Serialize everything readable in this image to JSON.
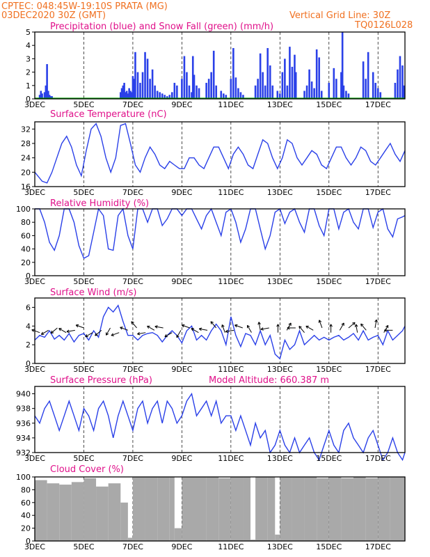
{
  "header": {
    "location": "CPTEC:  048:45W-19:10S  PRATA (MG)",
    "run": "03DEC2020 30Z (GMT)",
    "grid_note": "Vertical Grid Line: 30Z",
    "model_code": "TQ0126L028"
  },
  "chart_data": [
    {
      "type": "bar",
      "title": "Precipitation (blue) and Snow Fall (green) (mm/h)",
      "x_ticks": [
        "3DEC",
        "5DEC",
        "7DEC",
        "9DEC",
        "11DEC",
        "13DEC",
        "15DEC",
        "17DEC"
      ],
      "x_range_days": [
        3,
        18.1
      ],
      "ylim": [
        0,
        5
      ],
      "y_ticks": [
        0,
        1,
        2,
        3,
        4,
        5
      ],
      "series": [
        {
          "name": "Precipitation",
          "color": "#2a40e8",
          "x": [
            3.2,
            3.25,
            3.3,
            3.4,
            3.45,
            3.5,
            3.55,
            3.6,
            3.65,
            3.7,
            6.5,
            6.55,
            6.6,
            6.65,
            6.7,
            6.75,
            6.8,
            6.85,
            6.9,
            6.95,
            7.0,
            7.05,
            7.1,
            7.2,
            7.3,
            7.4,
            7.5,
            7.6,
            7.7,
            7.8,
            7.9,
            8.0,
            8.1,
            8.2,
            8.3,
            8.4,
            8.5,
            8.6,
            8.7,
            8.8,
            9.0,
            9.1,
            9.2,
            9.3,
            9.4,
            9.45,
            9.5,
            9.6,
            9.7,
            10.0,
            10.1,
            10.2,
            10.3,
            10.4,
            10.6,
            10.7,
            10.8,
            11.0,
            11.1,
            11.2,
            11.3,
            11.4,
            11.5,
            12.0,
            12.1,
            12.2,
            12.3,
            12.4,
            12.5,
            12.6,
            12.7,
            12.9,
            13.0,
            13.1,
            13.2,
            13.3,
            13.4,
            13.5,
            13.6,
            13.65,
            14.0,
            14.1,
            14.2,
            14.3,
            14.4,
            14.5,
            14.6,
            14.7,
            15.0,
            15.2,
            15.3,
            15.5,
            15.55,
            15.6,
            15.7,
            15.8,
            16.4,
            16.5,
            16.6,
            16.8,
            16.9,
            17.0,
            17.1,
            17.7,
            17.8,
            17.9,
            18.0,
            18.05
          ],
          "values": [
            0.3,
            0.6,
            0.4,
            0.5,
            1.0,
            2.6,
            0.6,
            0.3,
            0.2,
            0.2,
            0.5,
            0.8,
            1.0,
            1.2,
            0.5,
            0.6,
            0.4,
            0.8,
            0.6,
            0.5,
            1.7,
            1.5,
            3.5,
            2.0,
            1.2,
            2.0,
            3.5,
            3.0,
            1.5,
            2.2,
            1.0,
            0.6,
            0.5,
            0.4,
            0.3,
            0.2,
            0.3,
            0.5,
            1.2,
            1.0,
            1.5,
            3.2,
            2.0,
            1.0,
            0.5,
            3.2,
            1.8,
            1.0,
            0.8,
            1.2,
            1.5,
            2.0,
            3.6,
            1.0,
            0.6,
            0.4,
            0.3,
            1.5,
            3.8,
            1.6,
            0.8,
            0.5,
            0.3,
            1.0,
            1.5,
            3.4,
            2.0,
            1.0,
            3.8,
            2.5,
            1.0,
            0.6,
            0.4,
            2.0,
            3.0,
            1.0,
            3.9,
            2.4,
            3.3,
            2.0,
            0.6,
            1.0,
            2.2,
            1.3,
            0.8,
            3.7,
            3.1,
            0.6,
            1.2,
            2.3,
            1.5,
            2.0,
            5.0,
            1.0,
            0.6,
            0.4,
            2.8,
            1.5,
            3.5,
            2.0,
            1.2,
            0.8,
            0.5,
            1.2,
            2.2,
            3.2,
            2.5,
            1.0
          ]
        },
        {
          "name": "Snow Fall",
          "color": "#00a000",
          "values": [
            0
          ]
        }
      ]
    },
    {
      "type": "line",
      "title": "Surface Temperature (nC)",
      "x_ticks": [
        "3DEC",
        "5DEC",
        "7DEC",
        "9DEC",
        "11DEC",
        "13DEC",
        "15DEC",
        "17DEC"
      ],
      "ylim": [
        16,
        34
      ],
      "y_ticks": [
        16,
        20,
        24,
        28,
        32
      ],
      "x": [
        3.0,
        3.3,
        3.5,
        3.7,
        3.9,
        4.1,
        4.3,
        4.5,
        4.7,
        4.9,
        5.1,
        5.3,
        5.5,
        5.7,
        5.9,
        6.1,
        6.3,
        6.5,
        6.7,
        6.9,
        7.1,
        7.3,
        7.5,
        7.7,
        7.9,
        8.1,
        8.3,
        8.5,
        8.7,
        8.9,
        9.1,
        9.3,
        9.5,
        9.7,
        9.9,
        10.1,
        10.3,
        10.5,
        10.7,
        10.9,
        11.1,
        11.3,
        11.5,
        11.7,
        11.9,
        12.1,
        12.3,
        12.5,
        12.7,
        12.9,
        13.1,
        13.3,
        13.5,
        13.7,
        13.9,
        14.1,
        14.3,
        14.5,
        14.7,
        14.9,
        15.1,
        15.3,
        15.5,
        15.7,
        15.9,
        16.1,
        16.3,
        16.5,
        16.7,
        16.9,
        17.1,
        17.3,
        17.5,
        17.7,
        17.9,
        18.1
      ],
      "values": [
        20,
        17.5,
        17,
        20,
        24,
        28,
        30,
        27,
        22,
        19,
        26,
        32,
        33.5,
        30,
        24,
        20,
        24,
        33,
        33.5,
        28,
        22,
        20,
        24,
        27,
        25,
        22,
        21,
        23,
        22,
        21,
        21,
        24,
        24,
        22,
        21,
        24,
        27,
        27,
        24,
        21,
        25,
        27,
        25,
        22,
        21,
        25,
        29,
        28,
        24,
        21,
        24,
        29,
        28,
        24,
        22,
        24,
        26,
        25,
        22,
        21,
        24,
        27,
        27,
        24,
        22,
        24,
        27,
        26,
        23,
        22,
        24,
        26,
        28,
        25,
        23,
        26
      ]
    },
    {
      "type": "line",
      "title": "Relative Humidity (%)",
      "x_ticks": [
        "3DEC",
        "5DEC",
        "7DEC",
        "9DEC",
        "11DEC",
        "13DEC",
        "15DEC",
        "17DEC"
      ],
      "ylim": [
        0,
        100
      ],
      "y_ticks": [
        0,
        20,
        40,
        60,
        80,
        100
      ],
      "x": [
        3.0,
        3.2,
        3.4,
        3.6,
        3.8,
        4.0,
        4.2,
        4.4,
        4.6,
        4.8,
        5.0,
        5.2,
        5.4,
        5.6,
        5.8,
        6.0,
        6.2,
        6.4,
        6.6,
        6.8,
        7.0,
        7.2,
        7.4,
        7.6,
        7.8,
        8.0,
        8.2,
        8.4,
        8.6,
        8.8,
        9.0,
        9.2,
        9.4,
        9.6,
        9.8,
        10.0,
        10.2,
        10.4,
        10.6,
        10.8,
        11.0,
        11.2,
        11.4,
        11.6,
        11.8,
        12.0,
        12.2,
        12.4,
        12.6,
        12.8,
        13.0,
        13.2,
        13.4,
        13.6,
        13.8,
        14.0,
        14.2,
        14.4,
        14.6,
        14.8,
        15.0,
        15.2,
        15.4,
        15.6,
        15.8,
        16.0,
        16.2,
        16.4,
        16.6,
        16.8,
        17.0,
        17.2,
        17.4,
        17.6,
        17.8,
        18.0,
        18.1
      ],
      "values": [
        100,
        100,
        80,
        50,
        38,
        60,
        100,
        100,
        80,
        45,
        26,
        30,
        65,
        100,
        90,
        40,
        38,
        90,
        100,
        60,
        40,
        100,
        100,
        80,
        100,
        100,
        75,
        85,
        100,
        100,
        90,
        100,
        100,
        85,
        70,
        90,
        100,
        80,
        60,
        95,
        100,
        80,
        50,
        70,
        100,
        100,
        70,
        40,
        60,
        95,
        100,
        78,
        95,
        100,
        80,
        65,
        100,
        100,
        75,
        60,
        100,
        100,
        70,
        95,
        100,
        80,
        70,
        100,
        100,
        72,
        95,
        100,
        70,
        58,
        85,
        88,
        90
      ]
    },
    {
      "type": "line",
      "title": "Surface Wind (m/s)",
      "x_ticks": [
        "3DEC",
        "5DEC",
        "7DEC",
        "9DEC",
        "11DEC",
        "13DEC",
        "15DEC",
        "17DEC"
      ],
      "ylim": [
        0,
        7
      ],
      "y_ticks": [
        0,
        2,
        4,
        6
      ],
      "x": [
        3.0,
        3.2,
        3.4,
        3.6,
        3.8,
        4.0,
        4.2,
        4.4,
        4.6,
        4.8,
        5.0,
        5.2,
        5.4,
        5.6,
        5.8,
        6.0,
        6.2,
        6.4,
        6.6,
        6.8,
        7.0,
        7.2,
        7.4,
        7.6,
        7.8,
        8.0,
        8.2,
        8.4,
        8.6,
        8.8,
        9.0,
        9.2,
        9.4,
        9.6,
        9.8,
        10.0,
        10.2,
        10.4,
        10.6,
        10.8,
        11.0,
        11.2,
        11.4,
        11.6,
        11.8,
        12.0,
        12.2,
        12.4,
        12.6,
        12.8,
        13.0,
        13.2,
        13.4,
        13.6,
        13.8,
        14.0,
        14.2,
        14.4,
        14.6,
        14.8,
        15.0,
        15.2,
        15.4,
        15.6,
        15.8,
        16.0,
        16.2,
        16.4,
        16.6,
        16.8,
        17.0,
        17.2,
        17.4,
        17.6,
        17.8,
        18.0,
        18.1
      ],
      "values": [
        2.5,
        3.0,
        2.8,
        3.5,
        2.6,
        3.0,
        2.5,
        3.2,
        2.3,
        3.0,
        3.2,
        2.5,
        3.5,
        2.8,
        5.0,
        6.0,
        5.5,
        6.2,
        4.5,
        3.0,
        3.0,
        2.5,
        3.0,
        3.2,
        3.3,
        3.0,
        2.3,
        3.0,
        3.5,
        3.0,
        2.2,
        3.5,
        4.0,
        2.5,
        3.0,
        2.5,
        3.5,
        4.2,
        3.5,
        2.0,
        5.0,
        3.0,
        1.8,
        3.2,
        3.0,
        2.0,
        3.5,
        2.0,
        3.0,
        1.0,
        0.5,
        2.5,
        1.5,
        2.0,
        3.5,
        2.0,
        2.5,
        3.0,
        2.5,
        2.8,
        2.5,
        2.8,
        3.0,
        2.5,
        2.8,
        3.2,
        2.5,
        3.5,
        2.5,
        2.8,
        3.0,
        2.0,
        3.5,
        2.5,
        3.0,
        3.5,
        4.0
      ]
    },
    {
      "type": "line",
      "title": "Surface Pressure (hPa)",
      "annotation": "Model Altitude: 660.387 m",
      "x_ticks": [
        "3DEC",
        "5DEC",
        "7DEC",
        "9DEC",
        "11DEC",
        "13DEC",
        "15DEC",
        "17DEC"
      ],
      "ylim": [
        932,
        941
      ],
      "y_ticks": [
        932,
        934,
        936,
        938,
        940
      ],
      "x": [
        3.0,
        3.2,
        3.4,
        3.6,
        3.8,
        4.0,
        4.2,
        4.4,
        4.6,
        4.8,
        5.0,
        5.2,
        5.4,
        5.6,
        5.8,
        6.0,
        6.2,
        6.4,
        6.6,
        6.8,
        7.0,
        7.2,
        7.4,
        7.6,
        7.8,
        8.0,
        8.2,
        8.4,
        8.6,
        8.8,
        9.0,
        9.2,
        9.4,
        9.6,
        9.8,
        10.0,
        10.2,
        10.4,
        10.6,
        10.8,
        11.0,
        11.2,
        11.4,
        11.6,
        11.8,
        12.0,
        12.2,
        12.4,
        12.6,
        12.8,
        13.0,
        13.2,
        13.4,
        13.6,
        13.8,
        14.0,
        14.2,
        14.4,
        14.6,
        14.8,
        15.0,
        15.2,
        15.4,
        15.6,
        15.8,
        16.0,
        16.2,
        16.4,
        16.6,
        16.8,
        17.0,
        17.2,
        17.4,
        17.6,
        17.8,
        18.0,
        18.1
      ],
      "values": [
        937,
        936,
        938,
        939,
        937,
        935,
        937,
        939,
        937,
        935,
        938,
        937,
        935,
        938,
        939,
        937,
        934,
        937,
        939,
        937,
        935,
        938,
        939,
        936,
        938,
        939,
        936,
        939,
        938,
        936,
        937,
        939,
        940,
        937,
        938,
        939,
        937,
        939,
        936,
        937,
        937,
        935,
        937,
        935,
        933,
        936,
        934,
        935,
        932,
        933,
        935,
        933,
        932,
        934,
        932,
        933,
        934,
        932,
        931,
        933,
        935,
        933,
        932,
        935,
        936,
        934,
        933,
        932,
        934,
        935,
        933,
        931,
        932,
        934,
        932,
        931,
        932
      ]
    },
    {
      "type": "bar",
      "title": "Cloud Cover (%)",
      "x_ticks": [
        "3DEC",
        "5DEC",
        "7DEC",
        "9DEC",
        "11DEC",
        "13DEC",
        "15DEC",
        "17DEC"
      ],
      "ylim": [
        0,
        100
      ],
      "y_ticks": [
        0,
        20,
        40,
        60,
        80,
        100
      ],
      "color": "#a9a9a9",
      "x": [
        3.0,
        3.5,
        4.0,
        4.5,
        5.0,
        5.5,
        6.0,
        6.5,
        6.8,
        7.0,
        7.5,
        8.0,
        8.5,
        8.7,
        9.0,
        9.5,
        10.0,
        10.5,
        11.0,
        11.5,
        11.8,
        12.0,
        12.5,
        12.8,
        13.0,
        13.5,
        14.0,
        14.5,
        15.0,
        15.5,
        16.0,
        16.5,
        17.0,
        17.5,
        18.0
      ],
      "values": [
        95,
        90,
        88,
        92,
        98,
        85,
        90,
        60,
        5,
        100,
        100,
        100,
        100,
        20,
        100,
        100,
        100,
        98,
        100,
        100,
        2,
        100,
        100,
        10,
        100,
        100,
        100,
        98,
        100,
        98,
        100,
        98,
        100,
        100,
        100
      ]
    }
  ],
  "wind_barbs_note": "Wind direction arrows drawn along surface wind panel"
}
